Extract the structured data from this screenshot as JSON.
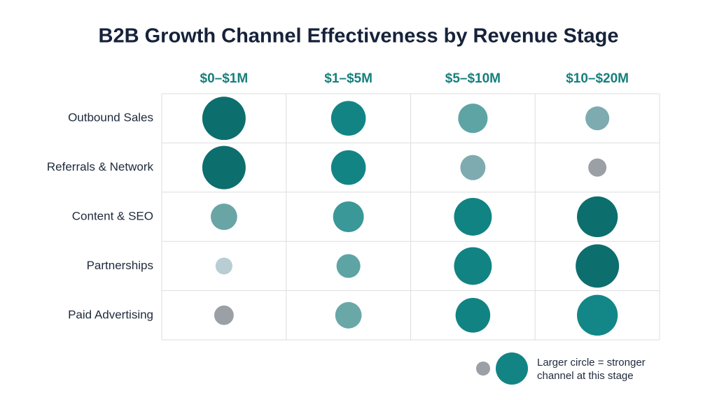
{
  "chart_data": {
    "type": "bubble_grid",
    "title": "B2B Growth Channel Effectiveness by Revenue Stage",
    "categories": [
      "$0–$1M",
      "$1–$5M",
      "$5–$10M",
      "$10–$20M"
    ],
    "series": [
      {
        "name": "Outbound Sales",
        "values": [
          10,
          8,
          6.8,
          5.5
        ],
        "colors": [
          "#0d6e6e",
          "#138484",
          "#5ea4a4",
          "#7eabaf"
        ]
      },
      {
        "name": "Referrals & Network",
        "values": [
          10,
          8,
          5.8,
          4.2
        ],
        "colors": [
          "#0d6e6e",
          "#138484",
          "#7eabaf",
          "#9aa0a6"
        ]
      },
      {
        "name": "Content & SEO",
        "values": [
          6.1,
          7.1,
          8.7,
          9.4
        ],
        "colors": [
          "#6aa5a6",
          "#3a9898",
          "#118383",
          "#0d6e6e"
        ]
      },
      {
        "name": "Partnerships",
        "values": [
          3.9,
          5.5,
          8.7,
          10
        ],
        "colors": [
          "#b8ced3",
          "#5ea4a4",
          "#118383",
          "#0d6e6e"
        ]
      },
      {
        "name": "Paid Advertising",
        "values": [
          4.5,
          6.1,
          8,
          9.4
        ],
        "colors": [
          "#9aa0a6",
          "#6aa8a8",
          "#118383",
          "#138787"
        ]
      }
    ],
    "legend_text": "Larger circle = stronger channel at this stage"
  }
}
